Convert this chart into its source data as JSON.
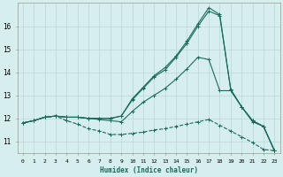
{
  "xlabel": "Humidex (Indice chaleur)",
  "xlim": [
    -0.5,
    23.5
  ],
  "ylim": [
    10.5,
    17.0
  ],
  "xticks": [
    0,
    1,
    2,
    3,
    4,
    5,
    6,
    7,
    8,
    9,
    10,
    11,
    12,
    13,
    14,
    15,
    16,
    17,
    18,
    19,
    20,
    21,
    22,
    23
  ],
  "yticks": [
    11,
    12,
    13,
    14,
    15,
    16
  ],
  "bg_color": "#d6eeee",
  "grid_color": "#b8d8d8",
  "line_color": "#1a6b5a",
  "curves": [
    {
      "x": [
        0,
        1,
        2,
        3,
        4,
        5,
        6,
        7,
        8,
        9,
        10,
        11,
        12,
        13,
        14,
        15,
        16,
        17,
        18,
        19,
        20,
        21,
        22,
        23
      ],
      "y": [
        11.8,
        11.9,
        12.05,
        12.1,
        11.9,
        11.75,
        11.55,
        11.45,
        11.3,
        11.3,
        11.35,
        11.4,
        11.5,
        11.55,
        11.65,
        11.75,
        11.85,
        11.95,
        11.7,
        11.45,
        11.2,
        10.95,
        10.65,
        10.6
      ],
      "linestyle": "--",
      "marker": "+"
    },
    {
      "x": [
        0,
        1,
        2,
        3,
        4,
        5,
        6,
        7,
        8,
        9,
        10,
        11,
        12,
        13,
        14,
        15,
        16,
        17,
        18,
        19,
        20,
        21,
        22,
        23
      ],
      "y": [
        11.8,
        11.9,
        12.05,
        12.1,
        12.05,
        12.05,
        12.0,
        11.95,
        11.9,
        11.85,
        12.3,
        12.7,
        13.0,
        13.3,
        13.7,
        14.15,
        14.65,
        14.55,
        13.2,
        13.2,
        12.5,
        11.85,
        11.65,
        10.6
      ],
      "linestyle": "-",
      "marker": "+"
    },
    {
      "x": [
        0,
        1,
        2,
        3,
        4,
        5,
        6,
        7,
        8,
        9,
        10,
        11,
        12,
        13,
        14,
        15,
        16,
        17,
        18,
        19,
        20,
        21,
        22,
        23
      ],
      "y": [
        11.8,
        11.9,
        12.05,
        12.1,
        12.05,
        12.05,
        12.0,
        12.0,
        12.0,
        12.1,
        12.8,
        13.3,
        13.8,
        14.1,
        14.65,
        15.25,
        16.0,
        16.65,
        16.45,
        13.25,
        12.5,
        11.9,
        11.65,
        10.6
      ],
      "linestyle": "-",
      "marker": "+"
    },
    {
      "x": [
        0,
        1,
        2,
        3,
        4,
        5,
        6,
        7,
        8,
        9,
        10,
        11,
        12,
        13,
        14,
        15,
        16,
        17,
        18,
        19,
        20,
        21,
        22,
        23
      ],
      "y": [
        11.8,
        11.9,
        12.05,
        12.1,
        12.05,
        12.05,
        12.0,
        12.0,
        12.0,
        12.1,
        12.85,
        13.35,
        13.85,
        14.2,
        14.7,
        15.35,
        16.1,
        16.8,
        16.5,
        13.25,
        12.5,
        11.9,
        11.65,
        10.6
      ],
      "linestyle": "-",
      "marker": "+"
    }
  ]
}
